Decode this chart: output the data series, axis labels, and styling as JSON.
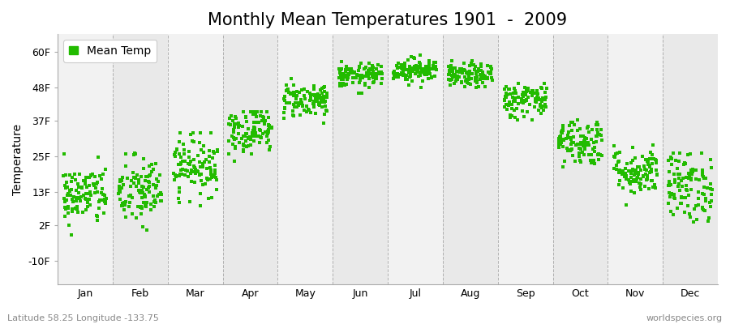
{
  "title": "Monthly Mean Temperatures 1901  -  2009",
  "ylabel": "Temperature",
  "xlabel_labels": [
    "Jan",
    "Feb",
    "Mar",
    "Apr",
    "May",
    "Jun",
    "Jul",
    "Aug",
    "Sep",
    "Oct",
    "Nov",
    "Dec"
  ],
  "ytick_labels": [
    "60F",
    "48F",
    "37F",
    "25F",
    "13F",
    "2F",
    "-10F"
  ],
  "ytick_values": [
    60,
    48,
    37,
    25,
    13,
    2,
    -10
  ],
  "ylim": [
    -18,
    66
  ],
  "dot_color": "#22bb00",
  "background_color": "#f8f8f8",
  "legend_label": "Mean Temp",
  "footer_left": "Latitude 58.25 Longitude -133.75",
  "footer_right": "worldspecies.org",
  "n_years": 109,
  "monthly_means": [
    12,
    13,
    22,
    34,
    44,
    52,
    54,
    52,
    44,
    30,
    20,
    15
  ],
  "monthly_stds": [
    5,
    6,
    5,
    4,
    3,
    2,
    2,
    2,
    3,
    4,
    4,
    6
  ],
  "monthly_mins": [
    -10,
    -8,
    5,
    22,
    36,
    46,
    48,
    46,
    37,
    18,
    8,
    3
  ],
  "monthly_maxs": [
    26,
    29,
    33,
    40,
    51,
    57,
    60,
    57,
    50,
    40,
    29,
    26
  ],
  "grid_color": "#888888",
  "title_fontsize": 15,
  "axis_fontsize": 10,
  "tick_fontsize": 9,
  "footer_fontsize": 8,
  "band_colors": [
    "#f2f2f2",
    "#e9e9e9"
  ]
}
